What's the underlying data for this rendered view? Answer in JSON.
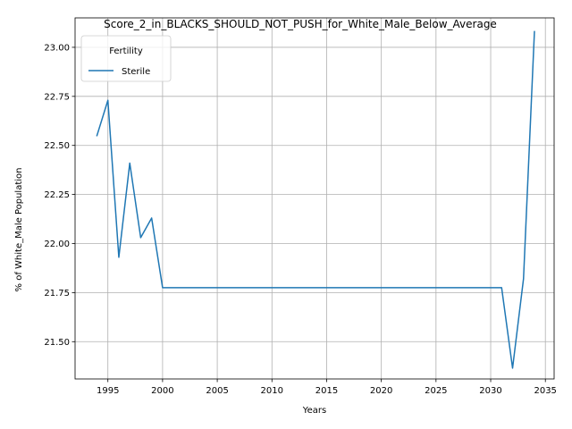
{
  "chart_data": {
    "type": "line",
    "title": "Score_2_in_BLACKS_SHOULD_NOT_PUSH_for_White_Male_Below_Average",
    "xlabel": "Years",
    "ylabel": "% of White_Male Population",
    "xlim": [
      1992.0,
      2035.8
    ],
    "ylim": [
      21.31,
      23.15
    ],
    "xticks": [
      1995,
      2000,
      2005,
      2010,
      2015,
      2020,
      2025,
      2030,
      2035
    ],
    "yticks": [
      21.5,
      21.75,
      22.0,
      22.25,
      22.5,
      22.75,
      23.0
    ],
    "ytick_labels": [
      "21.50",
      "21.75",
      "22.00",
      "22.25",
      "22.50",
      "22.75",
      "23.00"
    ],
    "grid": true,
    "legend": {
      "title": "Fertility",
      "position": "top-left"
    },
    "series": [
      {
        "name": "Sterile",
        "color": "#1f77b4",
        "x": [
          1994,
          1995,
          1996,
          1997,
          1998,
          1999,
          2000,
          2001,
          2002,
          2003,
          2004,
          2005,
          2006,
          2007,
          2008,
          2009,
          2010,
          2011,
          2012,
          2013,
          2014,
          2015,
          2016,
          2017,
          2018,
          2019,
          2020,
          2021,
          2022,
          2023,
          2024,
          2025,
          2026,
          2027,
          2028,
          2029,
          2030,
          2031,
          2032,
          2033,
          2034
        ],
        "values": [
          22.55,
          22.73,
          21.93,
          22.41,
          22.03,
          22.13,
          21.775,
          21.775,
          21.775,
          21.775,
          21.775,
          21.775,
          21.775,
          21.775,
          21.775,
          21.775,
          21.775,
          21.775,
          21.775,
          21.775,
          21.775,
          21.775,
          21.775,
          21.775,
          21.775,
          21.775,
          21.775,
          21.775,
          21.775,
          21.775,
          21.775,
          21.775,
          21.775,
          21.775,
          21.775,
          21.775,
          21.775,
          21.775,
          21.365,
          21.82,
          23.08
        ]
      }
    ]
  }
}
